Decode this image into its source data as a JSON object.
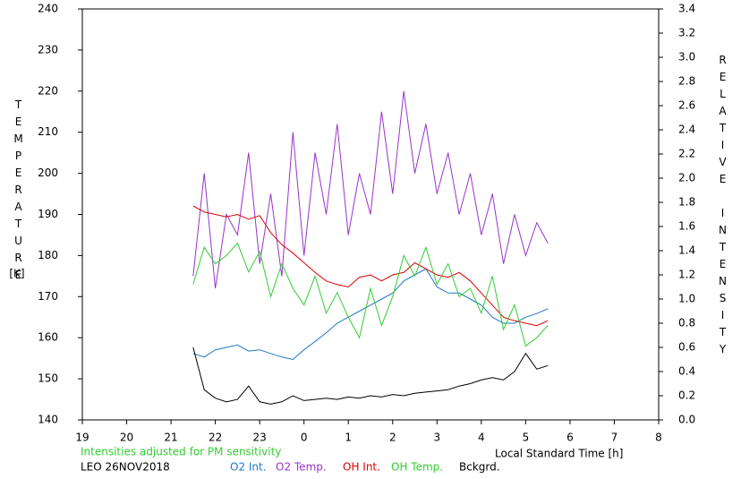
{
  "chart_data": {
    "type": "line",
    "note": "Intensities adjusted for PM sensitivity",
    "station": "LEO 26NOV2018",
    "x_label": "Local Standard Time [h]",
    "y_label": "TEMPERATURE",
    "y_unit": "[K]",
    "y2_label": "RELATIVE INTENSITY",
    "x": [
      21.5,
      21.75,
      22,
      22.25,
      22.5,
      22.75,
      23,
      23.25,
      23.5,
      23.75,
      24,
      24.25,
      24.5,
      24.75,
      25,
      25.25,
      25.5,
      25.75,
      26,
      26.25,
      26.5,
      26.75,
      27,
      27.25,
      27.5,
      27.75,
      28,
      28.25,
      28.5,
      28.75,
      29,
      29.25,
      29.5
    ],
    "xlim": [
      19,
      32
    ],
    "xticks": [
      19,
      20,
      21,
      22,
      23,
      {
        "value": 24,
        "label": "0"
      },
      {
        "value": 25,
        "label": "1"
      },
      {
        "value": 26,
        "label": "2"
      },
      {
        "value": 27,
        "label": "3"
      },
      {
        "value": 28,
        "label": "4"
      },
      {
        "value": 29,
        "label": "5"
      },
      {
        "value": 30,
        "label": "6"
      },
      {
        "value": 31,
        "label": "7"
      },
      {
        "value": 32,
        "label": "8"
      }
    ],
    "ylim": [
      140,
      240
    ],
    "yticks": [
      140,
      150,
      160,
      170,
      180,
      190,
      200,
      210,
      220,
      230,
      240
    ],
    "y2lim": [
      0,
      3.4
    ],
    "y2ticks": [
      {
        "value": 0,
        "label": "0.0"
      },
      0.2,
      0.4,
      0.6,
      0.8,
      {
        "value": 1,
        "label": "1.0"
      },
      1.2,
      1.4,
      1.6,
      1.8,
      {
        "value": 2,
        "label": "2.0"
      },
      2.2,
      2.4,
      2.6,
      2.8,
      {
        "value": 3,
        "label": "3.0"
      },
      3.2,
      3.4
    ],
    "series": [
      {
        "name": "O2 Int.",
        "color": "#1f78c8",
        "axis": "y2",
        "values": [
          0.55,
          0.52,
          0.58,
          0.6,
          0.62,
          0.57,
          0.58,
          0.55,
          0.52,
          0.5,
          0.58,
          0.65,
          0.72,
          0.8,
          0.85,
          0.9,
          0.95,
          1.0,
          1.05,
          1.15,
          1.2,
          1.25,
          1.1,
          1.05,
          1.05,
          1.0,
          0.95,
          0.85,
          0.8,
          0.8,
          0.85,
          0.88,
          0.92
        ]
      },
      {
        "name": "O2 Temp.",
        "color": "#9933cc",
        "values": [
          175,
          200,
          172,
          190,
          185,
          205,
          178,
          195,
          175,
          210,
          180,
          205,
          190,
          212,
          185,
          200,
          190,
          215,
          195,
          220,
          200,
          212,
          195,
          205,
          190,
          200,
          185,
          195,
          178,
          190,
          180,
          188,
          183
        ]
      },
      {
        "name": "OH Int.",
        "color": "#dd0000",
        "axis": "y2",
        "values": [
          1.77,
          1.72,
          1.7,
          1.68,
          1.7,
          1.66,
          1.69,
          1.55,
          1.45,
          1.38,
          1.3,
          1.22,
          1.15,
          1.12,
          1.1,
          1.18,
          1.2,
          1.15,
          1.2,
          1.22,
          1.3,
          1.25,
          1.2,
          1.18,
          1.22,
          1.15,
          1.05,
          0.95,
          0.85,
          0.82,
          0.8,
          0.78,
          0.82
        ]
      },
      {
        "name": "OH Temp.",
        "color": "#33cc33",
        "values": [
          173,
          182,
          178,
          180,
          183,
          176,
          181,
          170,
          178,
          172,
          168,
          175,
          166,
          171,
          165,
          160,
          172,
          163,
          170,
          180,
          175,
          182,
          173,
          178,
          170,
          172,
          166,
          175,
          162,
          168,
          158,
          160,
          163
        ]
      },
      {
        "name": "Bckgrd.",
        "color": "#000000",
        "axis": "y2",
        "values": [
          0.6,
          0.25,
          0.18,
          0.15,
          0.17,
          0.28,
          0.15,
          0.13,
          0.15,
          0.2,
          0.16,
          0.17,
          0.18,
          0.17,
          0.19,
          0.18,
          0.2,
          0.19,
          0.21,
          0.2,
          0.22,
          0.23,
          0.24,
          0.25,
          0.28,
          0.3,
          0.33,
          0.35,
          0.33,
          0.4,
          0.55,
          0.42,
          0.45
        ]
      }
    ]
  }
}
